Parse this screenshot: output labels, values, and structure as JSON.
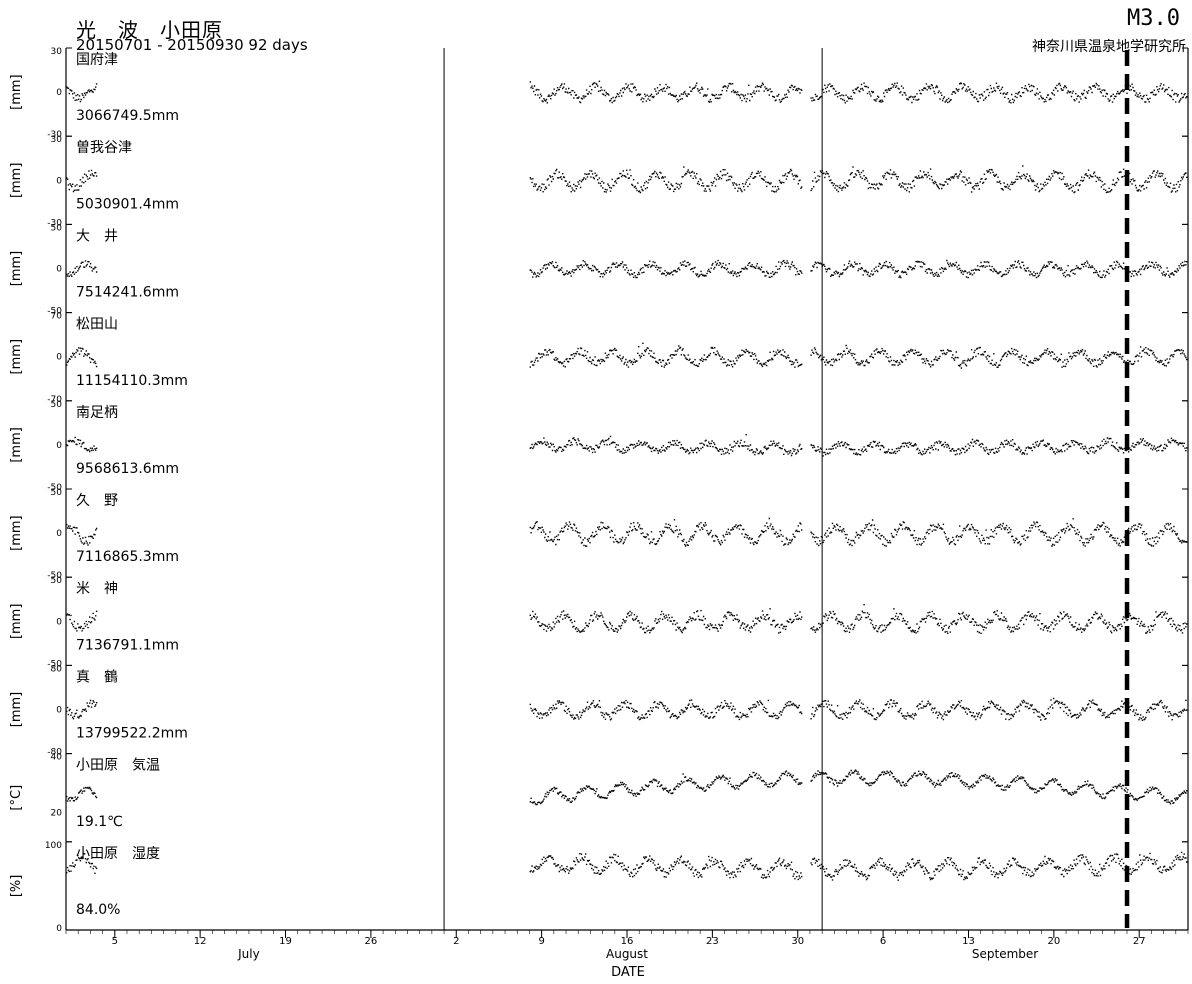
{
  "header": {
    "title": "光　波　小田原",
    "range": "20150701 - 20150930 92 days",
    "magnitude": "M3.0",
    "institute": "神奈川県温泉地学研究所"
  },
  "chart_data": {
    "type": "scatter",
    "xlabel": "DATE",
    "x_range_days": [
      1,
      93
    ],
    "event_day": 88,
    "month_labels": [
      {
        "label": "July",
        "day": 16
      },
      {
        "label": "August",
        "day": 47
      },
      {
        "label": "September",
        "day": 78
      }
    ],
    "day_ticks": [
      {
        "label": "5",
        "day": 5
      },
      {
        "label": "12",
        "day": 12
      },
      {
        "label": "19",
        "day": 19
      },
      {
        "label": "26",
        "day": 26
      },
      {
        "label": "2",
        "day": 33
      },
      {
        "label": "9",
        "day": 40
      },
      {
        "label": "16",
        "day": 47
      },
      {
        "label": "23",
        "day": 54
      },
      {
        "label": "30",
        "day": 61
      },
      {
        "label": "6",
        "day": 68
      },
      {
        "label": "13",
        "day": 75
      },
      {
        "label": "20",
        "day": 82
      },
      {
        "label": "27",
        "day": 89
      }
    ],
    "data_gaps": [
      [
        3.5,
        39.0
      ],
      [
        61.3,
        62.0
      ]
    ],
    "panels": [
      {
        "name": "国府津",
        "value": "3066749.5mm",
        "ylabel": "[mm]",
        "ylim": [
          -30,
          30
        ],
        "ticks": [
          "30",
          "0",
          "-30"
        ],
        "amplitude": 4,
        "trend": 0,
        "noise": 3
      },
      {
        "name": "曽我谷津",
        "value": "5030901.4mm",
        "ylabel": "[mm]",
        "ylim": [
          -30,
          30
        ],
        "ticks": [
          "30",
          "0",
          "-30"
        ],
        "amplitude": 5,
        "trend": 0,
        "noise": 3
      },
      {
        "name": "大　井",
        "value": "7514241.6mm",
        "ylabel": "[mm]",
        "ylim": [
          -50,
          50
        ],
        "ticks": [
          "50",
          "0",
          "-50"
        ],
        "amplitude": 6,
        "trend": 0,
        "noise": 4
      },
      {
        "name": "松田山",
        "value": "11154110.3mm",
        "ylabel": "[mm]",
        "ylim": [
          -70,
          70
        ],
        "ticks": [
          "70",
          "0",
          "-70"
        ],
        "amplitude": 10,
        "trend": 0,
        "noise": 6
      },
      {
        "name": "南足柄",
        "value": "9568613.6mm",
        "ylabel": "[mm]",
        "ylim": [
          -50,
          50
        ],
        "ticks": [
          "50",
          "0",
          "-50"
        ],
        "amplitude": 5,
        "trend": 3,
        "noise": 4
      },
      {
        "name": "久　野",
        "value": "7116865.3mm",
        "ylabel": "[mm]",
        "ylim": [
          -50,
          50
        ],
        "ticks": [
          "50",
          "0",
          "-50"
        ],
        "amplitude": 9,
        "trend": 0,
        "noise": 5
      },
      {
        "name": "米　神",
        "value": "7136791.1mm",
        "ylabel": "[mm]",
        "ylim": [
          -50,
          50
        ],
        "ticks": [
          "50",
          "0",
          "-50"
        ],
        "amplitude": 8,
        "trend": 0,
        "noise": 5
      },
      {
        "name": "真　鶴",
        "value": "13799522.2mm",
        "ylabel": "[mm]",
        "ylim": [
          -80,
          80
        ],
        "ticks": [
          "80",
          "0",
          "-80"
        ],
        "amplitude": 12,
        "trend": 0,
        "noise": 7
      },
      {
        "name": "小田原　気温",
        "value": "19.1℃",
        "ylabel": "[°C]",
        "ylim": [
          10,
          40
        ],
        "ticks": [
          "40",
          "20"
        ],
        "amplitude": 2,
        "trend": -5,
        "base": 27,
        "noise": 0.8
      },
      {
        "name": "小田原　湿度",
        "value": "84.0%",
        "ylabel": "[%]",
        "ylim": [
          0,
          100
        ],
        "ticks": [
          "100",
          "0"
        ],
        "amplitude": 8,
        "trend": 5,
        "base": 75,
        "noise": 5
      }
    ]
  }
}
